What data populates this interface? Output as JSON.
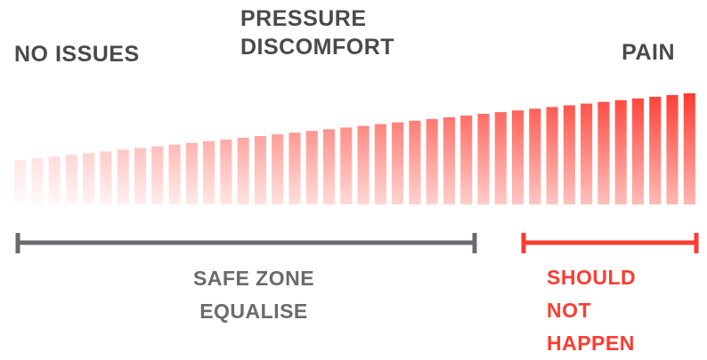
{
  "labels": {
    "no_issues": "NO ISSUES",
    "pressure_line1": "PRESSURE",
    "pressure_line2": "DISCOMFORT",
    "pain": "PAIN"
  },
  "zones": {
    "safe_line1": "SAFE ZONE",
    "safe_line2": "EQUALISE",
    "danger_line1": "SHOULD",
    "danger_line2": "NOT",
    "danger_line3": "HAPPEN"
  },
  "colors": {
    "text_dark": "#4a4a4a",
    "safe_gray": "#6b6b6f",
    "danger_red": "#ff3b30",
    "bar_red": "#ff3b30"
  },
  "gradient_bars": {
    "count": 40
  }
}
